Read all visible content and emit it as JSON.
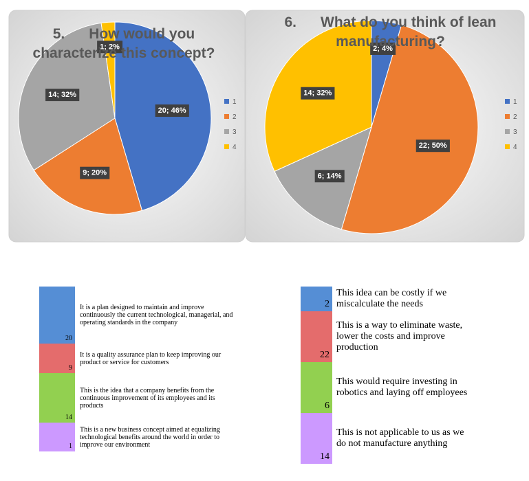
{
  "chart_data": [
    {
      "type": "pie",
      "title": "5.      How would you characterize this concept?",
      "categories": [
        "1",
        "2",
        "3",
        "4"
      ],
      "values": [
        20,
        9,
        14,
        1
      ],
      "value_labels": [
        "20; 46%",
        "9; 20%",
        "14; 32%",
        "1; 2%"
      ],
      "colors": [
        "#4472c4",
        "#ed7d31",
        "#a5a5a5",
        "#ffc000"
      ],
      "legend": "right"
    },
    {
      "type": "pie",
      "title": "6.      What do you think of lean manufacturing?",
      "categories": [
        "1",
        "2",
        "3",
        "4"
      ],
      "values": [
        2,
        22,
        6,
        14
      ],
      "value_labels": [
        "2; 4%",
        "22; 50%",
        "6; 14%",
        "14; 32%"
      ],
      "colors": [
        "#4472c4",
        "#ed7d31",
        "#a5a5a5",
        "#ffc000"
      ],
      "legend": "right"
    }
  ],
  "legend_tables": [
    {
      "rows": [
        {
          "count": "20",
          "color": "#558ed5",
          "text": "It is a plan designed to maintain and improve continuously the current technological, managerial, and operating standards in the company"
        },
        {
          "count": "9",
          "color": "#e46c6c",
          "text": "It is a quality assurance plan to keep improving our product or service for customers"
        },
        {
          "count": "14",
          "color": "#92d050",
          "text": "This is the idea that a company benefits from the continuous improvement of its employees and its products"
        },
        {
          "count": "1",
          "color": "#cc99ff",
          "text": "This is a new business concept aimed at equalizing technological benefits around the world in order to improve our environment"
        }
      ]
    },
    {
      "rows": [
        {
          "count": "2",
          "color": "#558ed5",
          "text": "This idea can be costly if we miscalculate the needs"
        },
        {
          "count": "22",
          "color": "#e46c6c",
          "text": "This is a way to eliminate waste, lower the costs and improve production"
        },
        {
          "count": "6",
          "color": "#92d050",
          "text": "This would require investing in robotics and laying off employees"
        },
        {
          "count": "14",
          "color": "#cc99ff",
          "text": "This is not applicable to us as we do not manufacture anything"
        }
      ]
    }
  ]
}
